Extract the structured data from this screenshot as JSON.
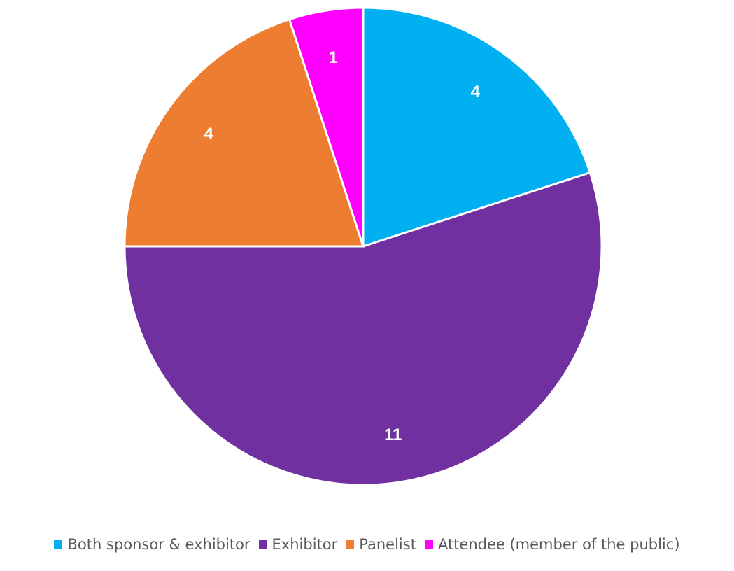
{
  "chart_data": {
    "type": "pie",
    "title": "",
    "categories": [
      "Both sponsor & exhibitor",
      "Exhibitor",
      "Panelist",
      "Attendee (member of the public)"
    ],
    "values": [
      4,
      11,
      4,
      1
    ],
    "colors": [
      "#00b0f0",
      "#7030a0",
      "#ed7d31",
      "#ff00ff"
    ],
    "data_labels": [
      "4",
      "11",
      "4",
      "1"
    ],
    "start_angle_deg": 0,
    "direction": "clockwise",
    "legend_position": "bottom"
  }
}
